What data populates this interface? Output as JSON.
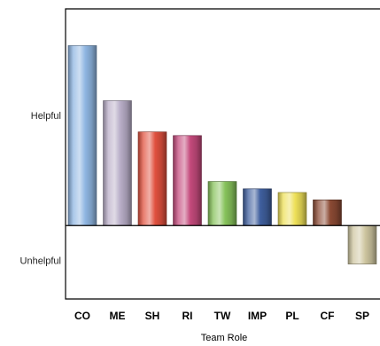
{
  "chart_data": {
    "type": "bar",
    "title": "",
    "xlabel": "Team Role",
    "ylabel": "",
    "categories": [
      "CO",
      "ME",
      "SH",
      "RI",
      "TW",
      "IMP",
      "PL",
      "CF",
      "SP"
    ],
    "values": [
      4.9,
      3.4,
      2.55,
      2.45,
      1.2,
      1.0,
      0.9,
      0.7,
      -1.05
    ],
    "ylim": [
      -2.0,
      5.9
    ],
    "y_tick_labels": [
      {
        "text": "Helpful",
        "value": 3.0
      },
      {
        "text": "Unhelpful",
        "value": -0.95
      }
    ],
    "grid": false,
    "legend": "none",
    "bar_colors": [
      "#8fb6e2",
      "#b9aec8",
      "#e0503e",
      "#c44a7c",
      "#86c25a",
      "#3f5f9e",
      "#eee058",
      "#8b4a34",
      "#cec6a0"
    ]
  }
}
